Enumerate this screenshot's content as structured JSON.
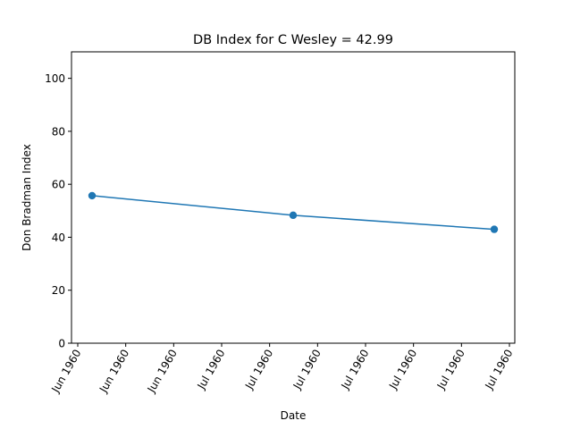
{
  "chart_data": {
    "type": "line",
    "title": "DB Index for C Wesley = 42.99",
    "xlabel": "Date",
    "ylabel": "Don Bradman Index",
    "x_tick_labels": [
      "Jun 1960",
      "Jun 1960",
      "Jun 1960",
      "Jul 1960",
      "Jul 1960",
      "Jul 1960",
      "Jul 1960",
      "Jul 1960",
      "Jul 1960",
      "Jul 1960"
    ],
    "y_ticks": [
      0,
      20,
      40,
      60,
      80,
      100
    ],
    "ylim": [
      0,
      110
    ],
    "grid": false,
    "series": [
      {
        "color": "#1f77b4",
        "marker": "circle",
        "values": [
          55.7,
          48.3,
          42.99
        ]
      }
    ]
  }
}
